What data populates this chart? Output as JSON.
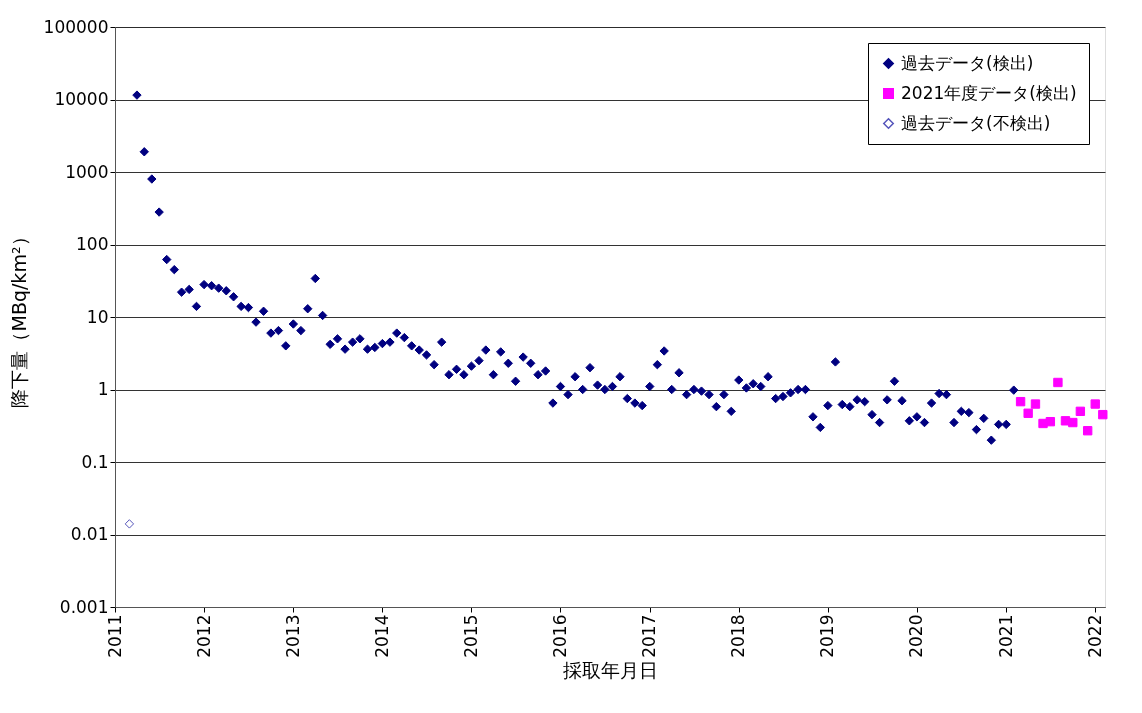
{
  "chart_data": {
    "type": "scatter",
    "xlabel": "採取年月日",
    "ylabel": "降下量（MBq/km²）",
    "log": true,
    "grid": "y",
    "legend": "top right",
    "xlim": [
      "2011-01",
      "2022-02-10"
    ],
    "xticks": [
      {
        "value": "2011",
        "label": "2011"
      },
      {
        "value": "2012",
        "label": "2012"
      },
      {
        "value": "2013",
        "label": "2013"
      },
      {
        "value": "2014",
        "label": "2014"
      },
      {
        "value": "2015",
        "label": "2015"
      },
      {
        "value": "2016",
        "label": "2016"
      },
      {
        "value": "2017",
        "label": "2017"
      },
      {
        "value": "2018",
        "label": "2018"
      },
      {
        "value": "2019",
        "label": "2019"
      },
      {
        "value": "2020",
        "label": "2020"
      },
      {
        "value": "2021",
        "label": "2021"
      },
      {
        "value": "2022",
        "label": "2022"
      }
    ],
    "ylim": [
      0.001,
      100000
    ],
    "yticks": [
      0.001,
      0.01,
      0.1,
      1,
      10,
      100,
      1000,
      10000,
      100000
    ],
    "series": [
      {
        "name": "過去データ(検出)",
        "color": "#000080",
        "marker": "diamond",
        "x": [
          "2011-04",
          "2011-05",
          "2011-06",
          "2011-07",
          "2011-08",
          "2011-09",
          "2011-10",
          "2011-11",
          "2011-12",
          "2012-01",
          "2012-02",
          "2012-03",
          "2012-04",
          "2012-05",
          "2012-06",
          "2012-07",
          "2012-08",
          "2012-09",
          "2012-10",
          "2012-11",
          "2012-12",
          "2013-01",
          "2013-02",
          "2013-03",
          "2013-04",
          "2013-05",
          "2013-06",
          "2013-07",
          "2013-08",
          "2013-09",
          "2013-10",
          "2013-11",
          "2013-12",
          "2014-01",
          "2014-02",
          "2014-03",
          "2014-04",
          "2014-05",
          "2014-06",
          "2014-07",
          "2014-08",
          "2014-09",
          "2014-10",
          "2014-11",
          "2014-12",
          "2015-01",
          "2015-02",
          "2015-03",
          "2015-04",
          "2015-05",
          "2015-06",
          "2015-07",
          "2015-08",
          "2015-09",
          "2015-10",
          "2015-11",
          "2015-12",
          "2016-01",
          "2016-02",
          "2016-03",
          "2016-04",
          "2016-05",
          "2016-06",
          "2016-07",
          "2016-08",
          "2016-09",
          "2016-10",
          "2016-11",
          "2016-12",
          "2017-01",
          "2017-02",
          "2017-03",
          "2017-04",
          "2017-05",
          "2017-06",
          "2017-07",
          "2017-08",
          "2017-09",
          "2017-10",
          "2017-11",
          "2017-12",
          "2018-01",
          "2018-02",
          "2018-03",
          "2018-04",
          "2018-05",
          "2018-06",
          "2018-07",
          "2018-08",
          "2018-09",
          "2018-10",
          "2018-11",
          "2018-12",
          "2019-01",
          "2019-02",
          "2019-03",
          "2019-04",
          "2019-05",
          "2019-06",
          "2019-07",
          "2019-08",
          "2019-09",
          "2019-10",
          "2019-11",
          "2019-12",
          "2020-01",
          "2020-02",
          "2020-03",
          "2020-04",
          "2020-05",
          "2020-06",
          "2020-07",
          "2020-08",
          "2020-09",
          "2020-10",
          "2020-11",
          "2020-12",
          "2021-01",
          "2021-02"
        ],
        "values": [
          11500,
          1900,
          800,
          280,
          62,
          45,
          22,
          24,
          14,
          28,
          27,
          25,
          23,
          19,
          14,
          13.5,
          8.5,
          12,
          6,
          6.5,
          4,
          8,
          6.5,
          13,
          34,
          10.5,
          4.2,
          5,
          3.6,
          4.5,
          5,
          3.6,
          3.8,
          4.3,
          4.5,
          6,
          5.2,
          4,
          3.5,
          3,
          2.2,
          4.5,
          1.6,
          1.9,
          1.6,
          2.1,
          2.5,
          3.5,
          1.6,
          3.3,
          2.3,
          1.3,
          2.8,
          2.3,
          1.6,
          1.8,
          0.65,
          1.1,
          0.85,
          1.5,
          1.0,
          2.0,
          1.15,
          1.0,
          1.1,
          1.5,
          0.75,
          0.65,
          0.6,
          1.1,
          2.2,
          3.4,
          1.0,
          1.7,
          0.85,
          1.0,
          0.95,
          0.85,
          0.58,
          0.85,
          0.5,
          1.35,
          1.05,
          1.2,
          1.1,
          1.5,
          0.75,
          0.8,
          0.9,
          1.0,
          1.0,
          0.42,
          0.3,
          0.6,
          2.4,
          0.62,
          0.58,
          0.72,
          0.68,
          0.45,
          0.35,
          0.72,
          1.3,
          0.7,
          0.37,
          0.42,
          0.35,
          0.65,
          0.88,
          0.85,
          0.35,
          0.5,
          0.48,
          0.28,
          0.4,
          0.2,
          0.33,
          0.33,
          0.98
        ]
      },
      {
        "name": "2021年度データ(検出)",
        "color": "#ff00ff",
        "marker": "square",
        "x": [
          "2021-03",
          "2021-04",
          "2021-05",
          "2021-06",
          "2021-07",
          "2021-08",
          "2021-09",
          "2021-10",
          "2021-11",
          "2021-12",
          "2022-01",
          "2022-02"
        ],
        "values": [
          0.68,
          0.47,
          0.63,
          0.34,
          0.36,
          1.25,
          0.37,
          0.35,
          0.5,
          0.27,
          0.63,
          0.45
        ]
      },
      {
        "name": "過去データ(不検出)",
        "color": "#ffffff",
        "marker": "diamond",
        "x": [
          "2011-03"
        ],
        "values": [
          0.014
        ]
      }
    ]
  }
}
